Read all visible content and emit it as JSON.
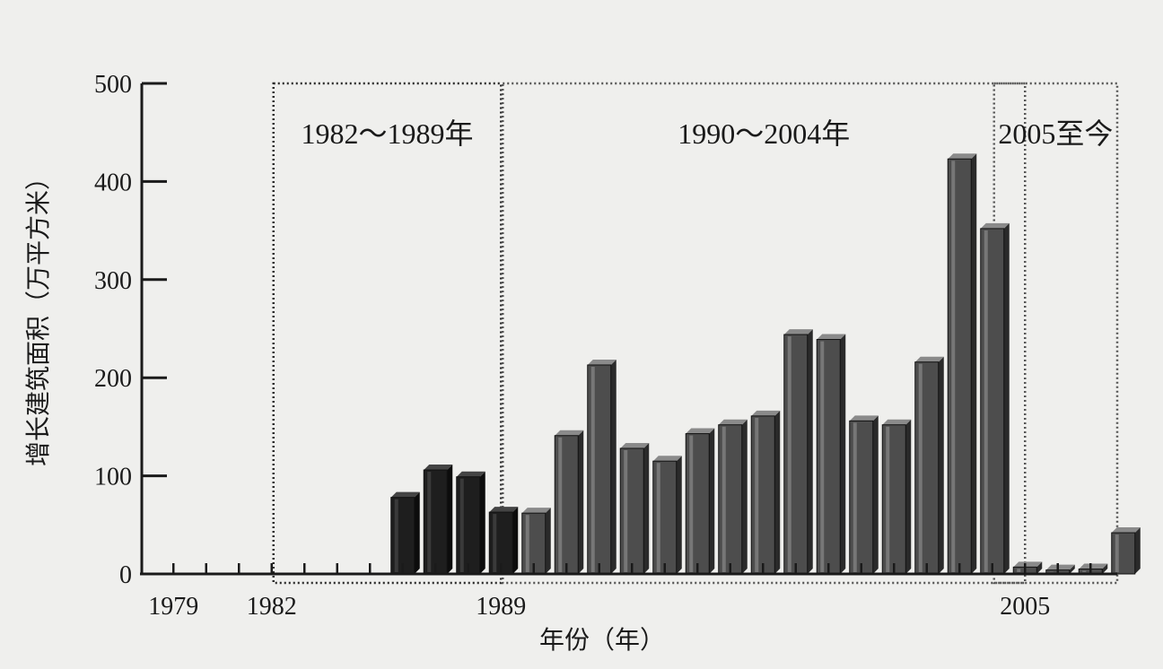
{
  "chart_data": {
    "type": "bar",
    "ylabel": "增长建筑面积（万平方米）",
    "xlabel": "年份（年）",
    "ylim": [
      0,
      500
    ],
    "yticks": [
      0,
      100,
      200,
      300,
      400,
      500
    ],
    "xlim": [
      1979,
      2008
    ],
    "x_tick_labels": [
      "1979",
      "1982",
      "1989",
      "2005"
    ],
    "grid": false,
    "periods": [
      {
        "label": "1982～1989年",
        "start": 1982,
        "end": 1989
      },
      {
        "label": "1990～2004年",
        "start": 1989,
        "end": 2004
      },
      {
        "label": "2005至今",
        "start": 2004,
        "end": 2008
      }
    ],
    "series": [
      {
        "years": [
          1986,
          1987,
          1988,
          1989,
          1990,
          1991,
          1992,
          1993,
          1994,
          1995,
          1996,
          1997,
          1998,
          1999,
          2000,
          2001,
          2002,
          2003,
          2004,
          2005,
          2006,
          2007,
          2008
        ],
        "values": [
          78,
          106,
          99,
          63,
          62,
          141,
          213,
          128,
          115,
          143,
          152,
          161,
          244,
          239,
          156,
          152,
          216,
          423,
          352,
          7,
          4,
          5,
          42
        ]
      }
    ],
    "colors": {
      "dark_bar": "#1e1e1e",
      "gray_bar": "#4d4d4d",
      "background": "#efefed"
    }
  }
}
